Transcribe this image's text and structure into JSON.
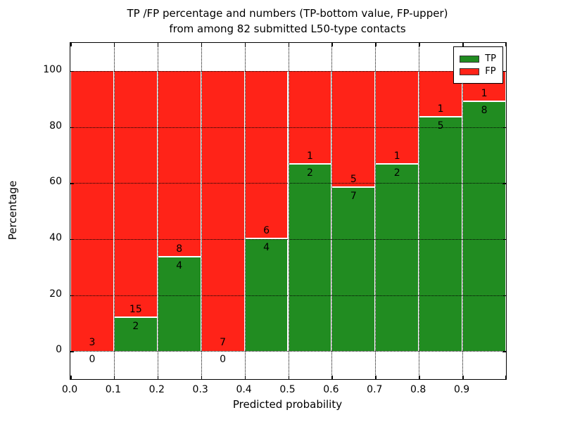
{
  "figure": {
    "title_line1": "TP /FP percentage and numbers (TP-bottom value, FP-upper)",
    "title_line2": "from among 82 submitted L50-type contacts"
  },
  "axes": {
    "xlabel": "Predicted probability",
    "ylabel": "Percentage",
    "x_tick_labels": [
      "0.0",
      "0.1",
      "0.2",
      "0.3",
      "0.4",
      "0.5",
      "0.6",
      "0.7",
      "0.8",
      "0.9"
    ],
    "y_tick_labels": [
      "0",
      "20",
      "40",
      "60",
      "80",
      "100"
    ],
    "y_tick_values": [
      0,
      20,
      40,
      60,
      80,
      100
    ],
    "xlim": [
      0.0,
      1.0
    ],
    "ylim": [
      -10,
      110
    ]
  },
  "legend": {
    "items": [
      {
        "label": "TP",
        "color": "#218c21"
      },
      {
        "label": "FP",
        "color": "#ff2318"
      }
    ]
  },
  "colors": {
    "tp_green": "#218c21",
    "fp_red": "#ff2318",
    "bar_edge": "#ffffff",
    "grid": "#000000"
  },
  "chart_data": {
    "type": "bar",
    "stacked": true,
    "normalized_to_percent": 100,
    "title": "TP /FP percentage and numbers (TP-bottom value, FP-upper) from among 82 submitted L50-type contacts",
    "xlabel": "Predicted probability",
    "ylabel": "Percentage",
    "bin_edges": [
      0.0,
      0.1,
      0.2,
      0.3,
      0.4,
      0.5,
      0.6,
      0.7,
      0.8,
      0.9,
      1.0
    ],
    "series": [
      {
        "name": "TP",
        "color": "#218c21",
        "counts": [
          0,
          2,
          4,
          0,
          4,
          2,
          7,
          2,
          5,
          8
        ]
      },
      {
        "name": "FP",
        "color": "#ff2318",
        "counts": [
          3,
          15,
          8,
          7,
          6,
          1,
          5,
          1,
          1,
          1
        ]
      }
    ],
    "tp_percent": [
      0.0,
      11.76,
      33.33,
      0.0,
      40.0,
      66.67,
      58.33,
      66.67,
      83.33,
      88.89
    ],
    "total_contacts": 82,
    "ylim": [
      -10,
      110
    ],
    "xlim": [
      0.0,
      1.0
    ],
    "grid": "dotted both axes",
    "legend_position": "upper right"
  }
}
